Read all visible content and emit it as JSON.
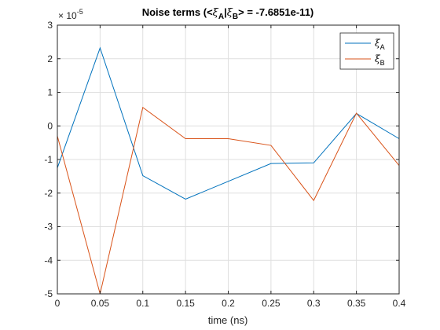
{
  "chart_data": {
    "type": "line",
    "title_prefix": "Noise terms (<",
    "title_xi": "ξ",
    "title_sub_a": "A",
    "title_bar": "|",
    "title_sub_b": "B",
    "title_suffix": "> = -7.6851e-11)",
    "xlabel": "time (ns)",
    "ylabel": "",
    "y_multiplier_prefix": "× 10",
    "y_multiplier_exponent": "-5",
    "xlim": [
      0,
      0.4
    ],
    "ylim": [
      -5,
      3
    ],
    "xticks": [
      0,
      0.05,
      0.1,
      0.15,
      0.2,
      0.25,
      0.3,
      0.35,
      0.4
    ],
    "xtick_labels": [
      "0",
      "0.05",
      "0.1",
      "0.15",
      "0.2",
      "0.25",
      "0.3",
      "0.35",
      "0.4"
    ],
    "yticks": [
      -5,
      -4,
      -3,
      -2,
      -1,
      0,
      1,
      2,
      3
    ],
    "ytick_labels": [
      "-5",
      "-4",
      "-3",
      "-2",
      "-1",
      "0",
      "1",
      "2",
      "3"
    ],
    "grid": true,
    "legend_position": "top-right",
    "x": [
      0,
      0.05,
      0.1,
      0.15,
      0.2,
      0.25,
      0.3,
      0.35,
      0.4
    ],
    "series": [
      {
        "name": "ξ",
        "name_sub": "A",
        "color": "#0072BD",
        "values": [
          -1.25,
          2.32,
          -1.48,
          -2.18,
          -1.65,
          -1.12,
          -1.1,
          0.37,
          -0.38
        ]
      },
      {
        "name": "ξ",
        "name_sub": "B",
        "color": "#D95319",
        "values": [
          -0.3,
          -5.0,
          0.55,
          -0.38,
          -0.38,
          -0.58,
          -2.22,
          0.38,
          -1.18
        ]
      }
    ]
  }
}
